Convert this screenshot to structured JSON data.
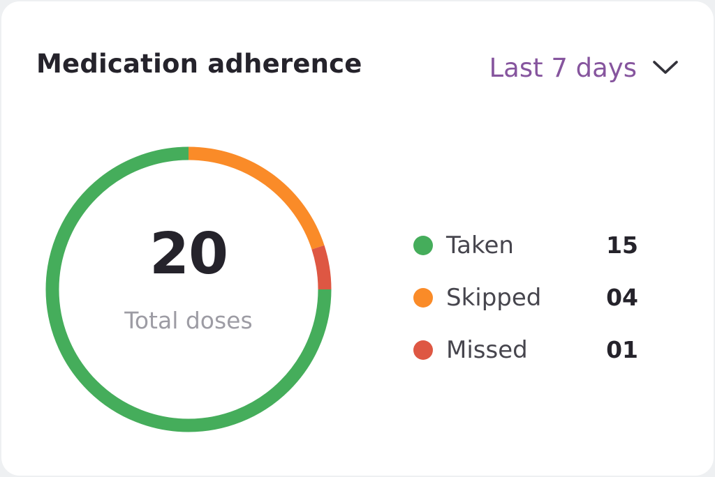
{
  "card": {
    "title": "Medication adherence",
    "range": {
      "selected": "Last 7 days",
      "icon": "chevron-down-icon"
    }
  },
  "summary": {
    "total": "20",
    "total_label": "Total doses"
  },
  "colors": {
    "taken": "#45ad5b",
    "skipped": "#fa8b28",
    "missed": "#de5743",
    "accent": "#86559e"
  },
  "chart_data": {
    "type": "pie",
    "categories": [
      "Taken",
      "Skipped",
      "Missed"
    ],
    "values": [
      15,
      4,
      1
    ],
    "value_labels": [
      "15",
      "04",
      "01"
    ]
  }
}
